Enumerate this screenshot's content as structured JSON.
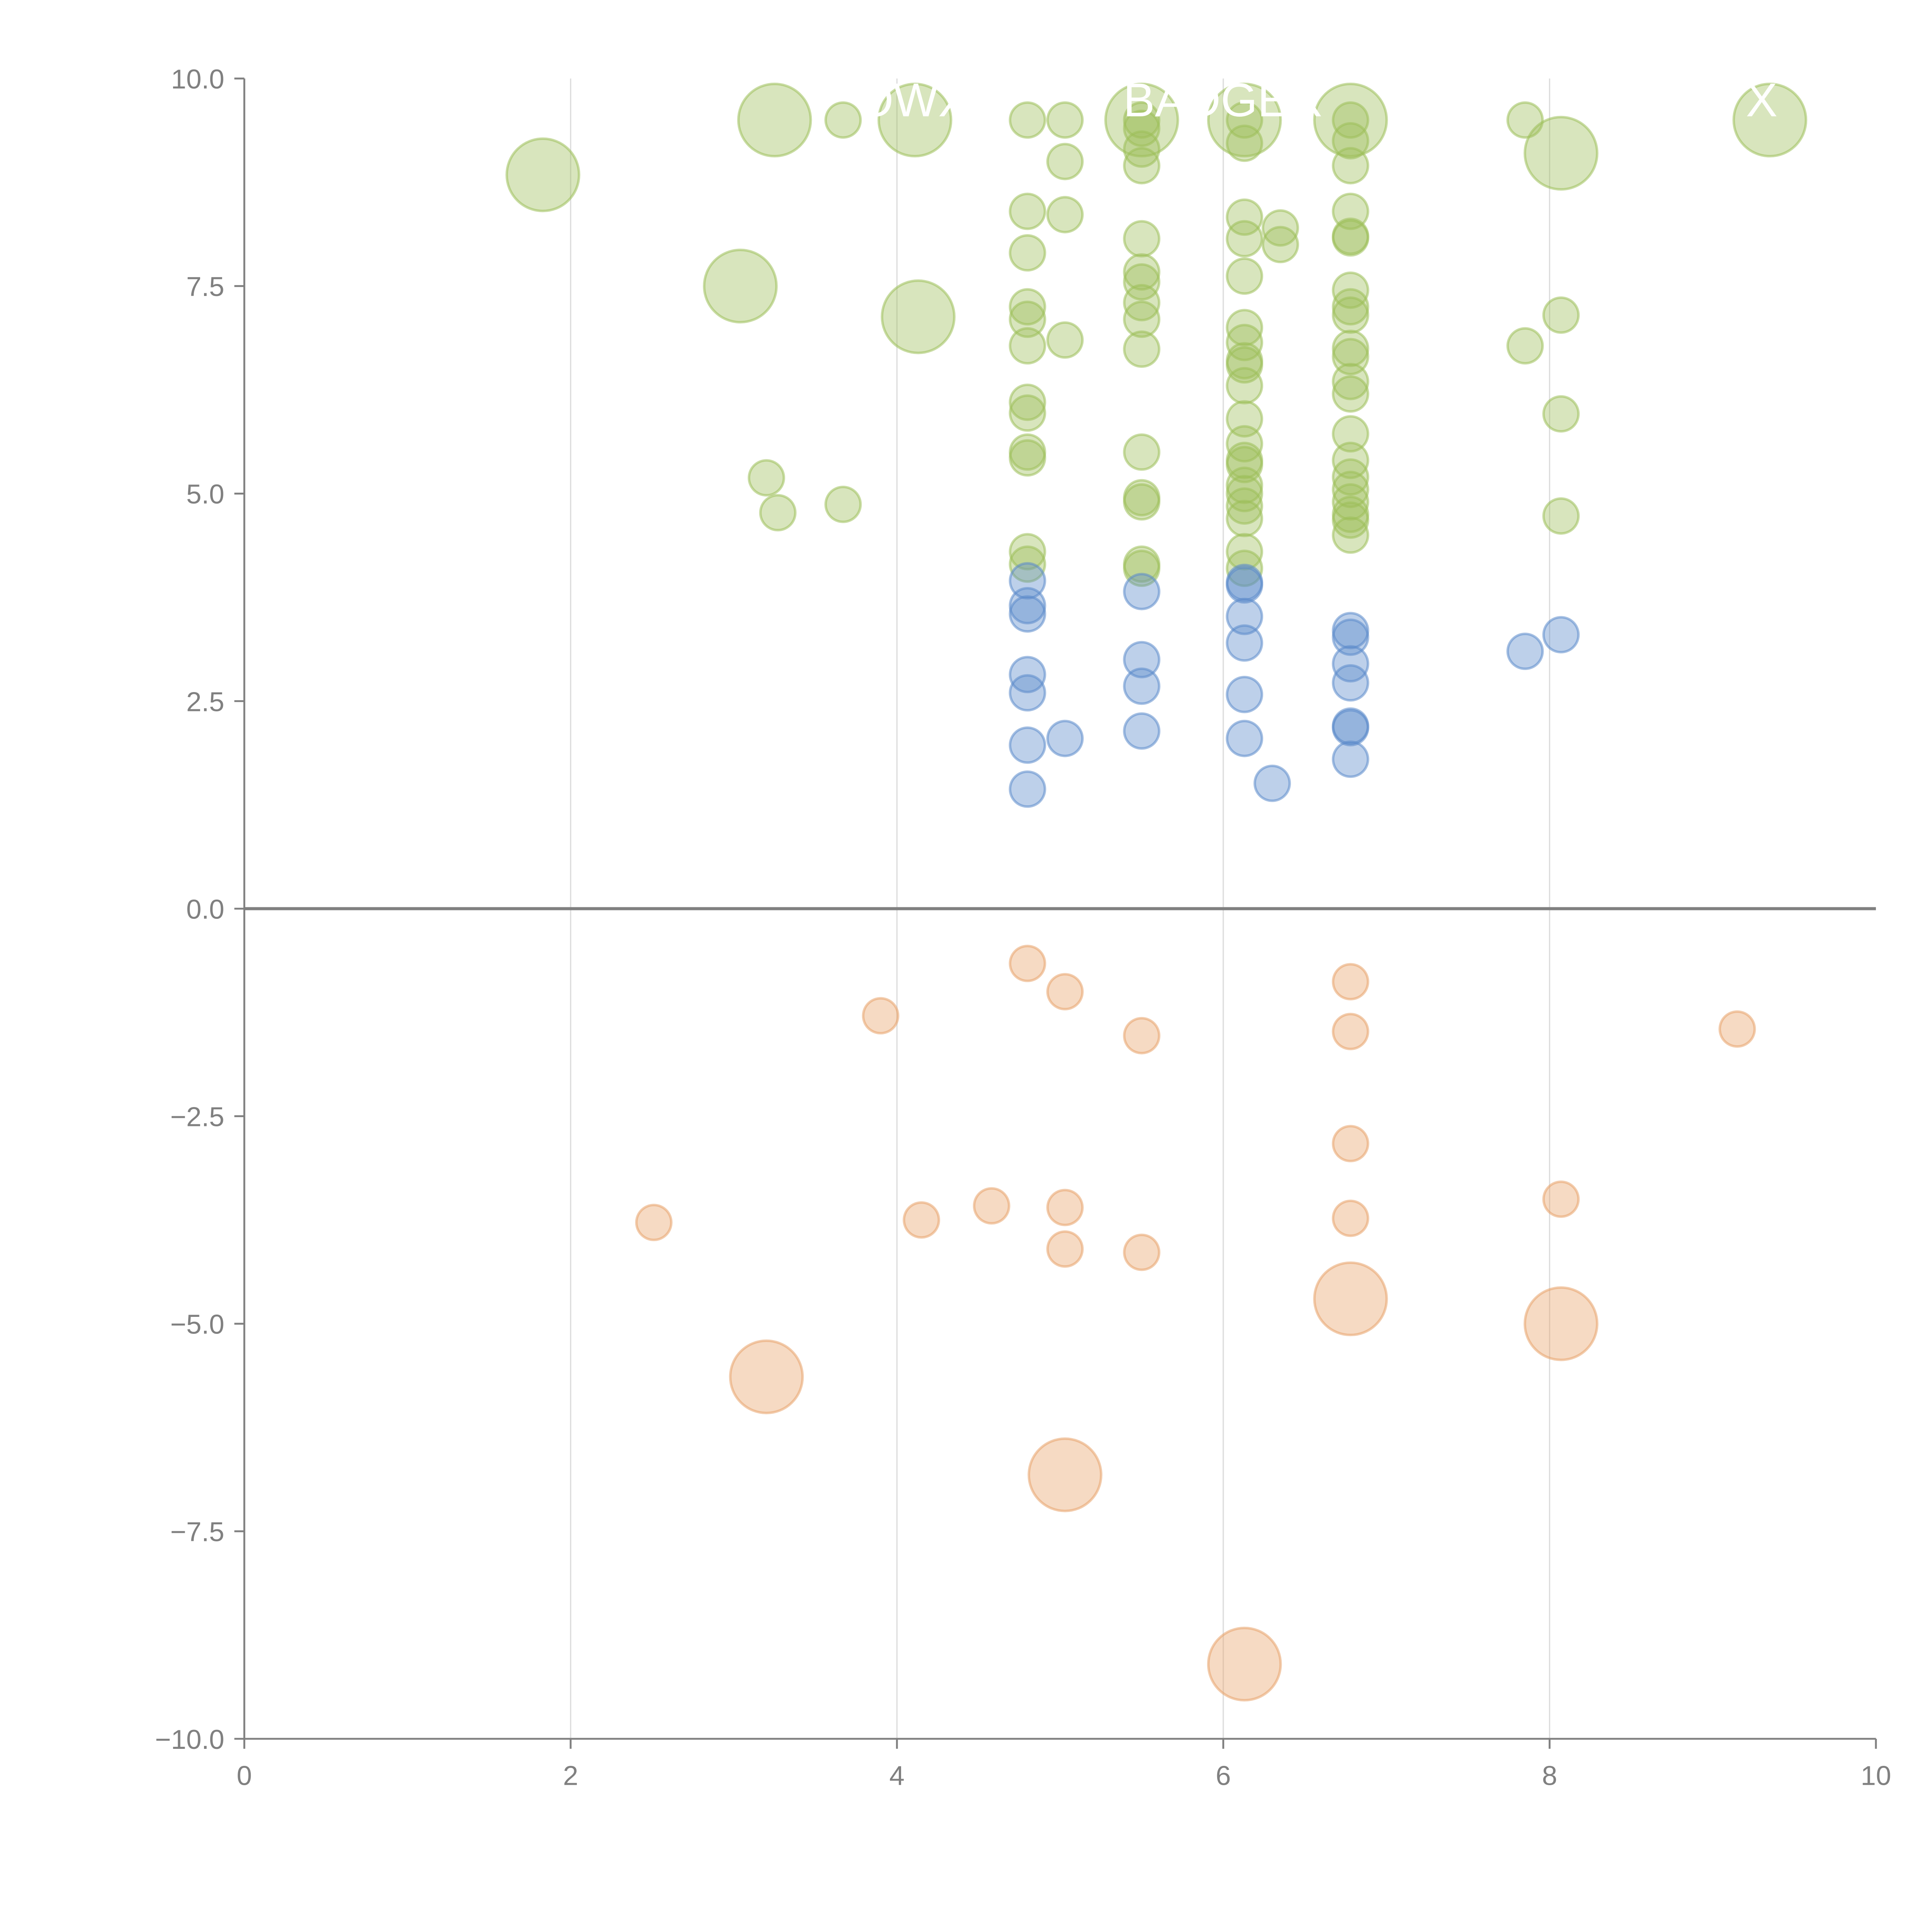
{
  "chart_data": {
    "type": "scatter",
    "title": "",
    "xlabel": "",
    "ylabel": "",
    "xlim": [
      0,
      10
    ],
    "ylim": [
      -10,
      10
    ],
    "grid": "vertical",
    "x_ticks": [
      "0",
      "2",
      "4",
      "6",
      "8",
      "10"
    ],
    "x_tick_values": [
      0,
      2,
      4,
      6,
      8,
      10
    ],
    "y_ticks": [
      "10.0",
      "7.5",
      "5.0",
      "2.5",
      "0.0",
      "−2.5",
      "−5.0",
      "−7.5",
      "−10.0"
    ],
    "y_tick_values": [
      10,
      7.5,
      5,
      2.5,
      0,
      -2.5,
      -5,
      -7.5,
      -10
    ],
    "colors": {
      "green": "#9dbf5a",
      "blue": "#5b8acb",
      "orange": "#e8a36a",
      "axis": "#808080"
    },
    "series": [
      {
        "name": "green",
        "color": "#9dbf5a",
        "large": [
          [
            1.83,
            8.84
          ],
          [
            3.25,
            9.5
          ],
          [
            4.11,
            9.5
          ],
          [
            3.04,
            7.5
          ],
          [
            4.13,
            7.13
          ],
          [
            5.5,
            9.5
          ],
          [
            6.13,
            9.5
          ],
          [
            6.78,
            9.5
          ],
          [
            8.07,
            9.1
          ],
          [
            9.35,
            9.5
          ]
        ],
        "small": [
          [
            3.67,
            9.5
          ],
          [
            3.67,
            4.87
          ],
          [
            3.2,
            5.19
          ],
          [
            3.27,
            4.77
          ],
          [
            4.8,
            9.5
          ],
          [
            4.8,
            8.4
          ],
          [
            4.8,
            7.9
          ],
          [
            4.8,
            7.25
          ],
          [
            4.8,
            7.1
          ],
          [
            4.8,
            6.78
          ],
          [
            4.8,
            6.1
          ],
          [
            4.8,
            5.97
          ],
          [
            4.8,
            5.5
          ],
          [
            4.8,
            5.43
          ],
          [
            4.8,
            4.3
          ],
          [
            4.8,
            4.15
          ],
          [
            5.03,
            9.5
          ],
          [
            5.03,
            9.0
          ],
          [
            5.03,
            8.36
          ],
          [
            5.03,
            6.85
          ],
          [
            5.5,
            9.5
          ],
          [
            5.5,
            9.4
          ],
          [
            5.5,
            9.15
          ],
          [
            5.5,
            8.95
          ],
          [
            5.5,
            8.07
          ],
          [
            5.5,
            7.67
          ],
          [
            5.5,
            7.55
          ],
          [
            5.5,
            7.3
          ],
          [
            5.5,
            7.1
          ],
          [
            5.5,
            6.74
          ],
          [
            5.5,
            5.5
          ],
          [
            5.5,
            4.95
          ],
          [
            5.5,
            4.9
          ],
          [
            5.5,
            4.15
          ],
          [
            5.5,
            4.1
          ],
          [
            6.13,
            9.5
          ],
          [
            6.13,
            9.22
          ],
          [
            6.13,
            8.33
          ],
          [
            6.13,
            8.07
          ],
          [
            6.13,
            7.62
          ],
          [
            6.13,
            7.0
          ],
          [
            6.13,
            6.82
          ],
          [
            6.13,
            6.6
          ],
          [
            6.13,
            6.55
          ],
          [
            6.13,
            6.3
          ],
          [
            6.13,
            5.9
          ],
          [
            6.13,
            5.6
          ],
          [
            6.13,
            5.4
          ],
          [
            6.13,
            5.35
          ],
          [
            6.13,
            5.1
          ],
          [
            6.13,
            5.0
          ],
          [
            6.13,
            4.85
          ],
          [
            6.13,
            4.7
          ],
          [
            6.13,
            4.3
          ],
          [
            6.13,
            4.1
          ],
          [
            6.35,
            8.2
          ],
          [
            6.35,
            8.0
          ],
          [
            6.78,
            9.5
          ],
          [
            6.78,
            9.25
          ],
          [
            6.78,
            8.95
          ],
          [
            6.78,
            8.4
          ],
          [
            6.78,
            8.1
          ],
          [
            6.78,
            8.08
          ],
          [
            6.78,
            7.45
          ],
          [
            6.78,
            7.25
          ],
          [
            6.78,
            7.15
          ],
          [
            6.78,
            6.75
          ],
          [
            6.78,
            6.65
          ],
          [
            6.78,
            6.35
          ],
          [
            6.78,
            6.2
          ],
          [
            6.78,
            5.72
          ],
          [
            6.78,
            5.4
          ],
          [
            6.78,
            5.2
          ],
          [
            6.78,
            5.05
          ],
          [
            6.78,
            4.9
          ],
          [
            6.78,
            4.75
          ],
          [
            6.78,
            4.68
          ],
          [
            6.78,
            4.5
          ],
          [
            7.85,
            9.5
          ],
          [
            7.85,
            6.78
          ],
          [
            8.07,
            7.15
          ],
          [
            8.07,
            5.96
          ],
          [
            8.07,
            4.73
          ]
        ]
      },
      {
        "name": "blue",
        "color": "#5b8acb",
        "large": [],
        "small": [
          [
            4.8,
            3.95
          ],
          [
            4.8,
            3.65
          ],
          [
            4.8,
            3.55
          ],
          [
            4.8,
            2.82
          ],
          [
            4.8,
            2.6
          ],
          [
            4.8,
            1.97
          ],
          [
            4.8,
            1.44
          ],
          [
            5.03,
            2.05
          ],
          [
            5.5,
            3.82
          ],
          [
            5.5,
            3.0
          ],
          [
            5.5,
            2.68
          ],
          [
            5.5,
            2.14
          ],
          [
            6.13,
            3.93
          ],
          [
            6.13,
            3.9
          ],
          [
            6.13,
            3.52
          ],
          [
            6.13,
            3.2
          ],
          [
            6.13,
            2.58
          ],
          [
            6.13,
            2.05
          ],
          [
            6.3,
            1.51
          ],
          [
            6.78,
            3.35
          ],
          [
            6.78,
            3.27
          ],
          [
            6.78,
            2.95
          ],
          [
            6.78,
            2.72
          ],
          [
            6.78,
            2.2
          ],
          [
            6.78,
            2.18
          ],
          [
            6.78,
            1.8
          ],
          [
            7.85,
            3.1
          ],
          [
            8.07,
            3.3
          ]
        ]
      },
      {
        "name": "orange",
        "color": "#e8a36a",
        "large": [
          [
            6.78,
            -4.7
          ],
          [
            8.07,
            -5.0
          ],
          [
            3.2,
            -5.64
          ],
          [
            5.03,
            -6.82
          ],
          [
            6.13,
            -9.1
          ]
        ],
        "small": [
          [
            3.9,
            -1.29
          ],
          [
            4.8,
            -0.66
          ],
          [
            5.03,
            -1.0
          ],
          [
            5.5,
            -1.53
          ],
          [
            6.78,
            -0.88
          ],
          [
            6.78,
            -1.48
          ],
          [
            9.15,
            -1.45
          ],
          [
            2.51,
            -3.78
          ],
          [
            4.15,
            -3.75
          ],
          [
            4.58,
            -3.58
          ],
          [
            5.03,
            -3.6
          ],
          [
            5.03,
            -4.1
          ],
          [
            5.5,
            -4.14
          ],
          [
            6.78,
            -2.83
          ],
          [
            6.78,
            -3.73
          ],
          [
            8.07,
            -3.5
          ]
        ]
      }
    ],
    "annotations": [
      {
        "text": "OWX",
        "x": 4.1,
        "y": 9.5
      },
      {
        "text": "BADGER",
        "x": 6.0,
        "y": 9.5
      },
      {
        "text": "X",
        "x": 9.3,
        "y": 9.5
      }
    ]
  }
}
